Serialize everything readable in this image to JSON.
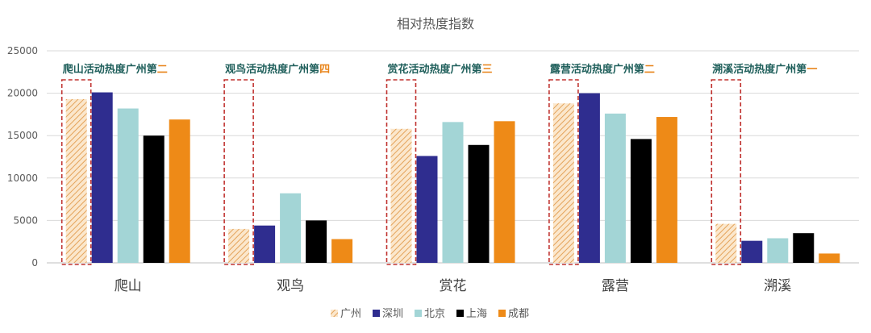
{
  "chart_data": {
    "type": "bar",
    "title": "相对热度指数",
    "categories": [
      "爬山",
      "观鸟",
      "赏花",
      "露营",
      "溯溪"
    ],
    "series": [
      {
        "name": "广州",
        "values": [
          19300,
          4000,
          15800,
          18800,
          4600
        ],
        "color": "#e9b97a",
        "pattern": "hatch"
      },
      {
        "name": "深圳",
        "values": [
          20100,
          4400,
          12600,
          20000,
          2600
        ],
        "color": "#2f2d8f"
      },
      {
        "name": "北京",
        "values": [
          18200,
          8200,
          16600,
          17600,
          2900
        ],
        "color": "#a3d5d6"
      },
      {
        "name": "上海",
        "values": [
          15000,
          5000,
          13900,
          14600,
          3500
        ],
        "color": "#000000"
      },
      {
        "name": "成都",
        "values": [
          16900,
          2800,
          16700,
          17200,
          1100
        ],
        "color": "#ee8a17"
      }
    ],
    "yticks": [
      "0",
      "5000",
      "10000",
      "15000",
      "20000",
      "25000"
    ],
    "ylim": [
      0,
      25000
    ],
    "grid": true,
    "legend_position": "bottom",
    "annotations": [
      {
        "text": "爬山活动热度广州第",
        "rank": "二"
      },
      {
        "text": "观鸟活动热度广州第",
        "rank": "四"
      },
      {
        "text": "赏花活动热度广州第",
        "rank": "三"
      },
      {
        "text": "露营活动热度广州第",
        "rank": "二"
      },
      {
        "text": "溯溪活动热度广州第",
        "rank": "一"
      }
    ],
    "highlight_color": "#c0322f"
  }
}
